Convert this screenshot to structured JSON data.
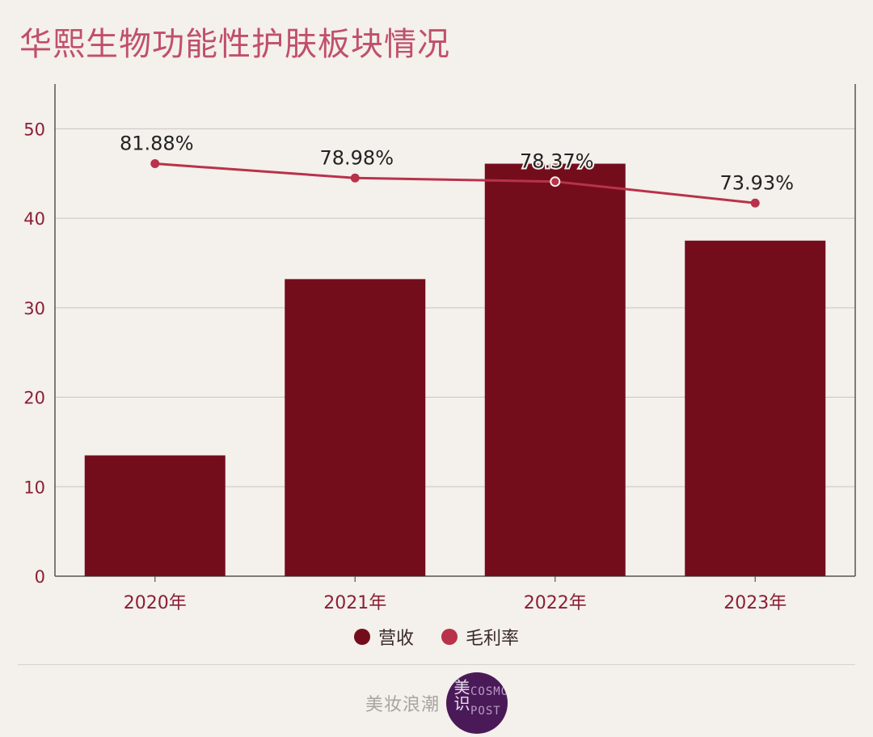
{
  "title": "华熙生物功能性护肤板块情况",
  "chart_data": {
    "type": "bar",
    "categories": [
      "2020年",
      "2021年",
      "2022年",
      "2023年"
    ],
    "ylim": [
      0,
      55
    ],
    "yticks": [
      0,
      10,
      20,
      30,
      40,
      50
    ],
    "grid": true,
    "series": [
      {
        "name": "营收",
        "type": "bar",
        "color": "#730d1c",
        "values": [
          13.5,
          33.2,
          46.1,
          37.5
        ]
      },
      {
        "name": "毛利率",
        "type": "line",
        "color": "#b8324a",
        "values": [
          81.88,
          78.98,
          78.37,
          73.93
        ],
        "labels": [
          "81.88%",
          "78.98%",
          "78.37%",
          "73.93%"
        ],
        "plotted_on_left_axis": [
          46.1,
          44.5,
          44.1,
          41.7
        ]
      }
    ],
    "legend_position": "bottom-center"
  },
  "footer": {
    "brand_text": "美妆浪潮",
    "logo_cn": "美识",
    "logo_en": "COSMO POST"
  }
}
